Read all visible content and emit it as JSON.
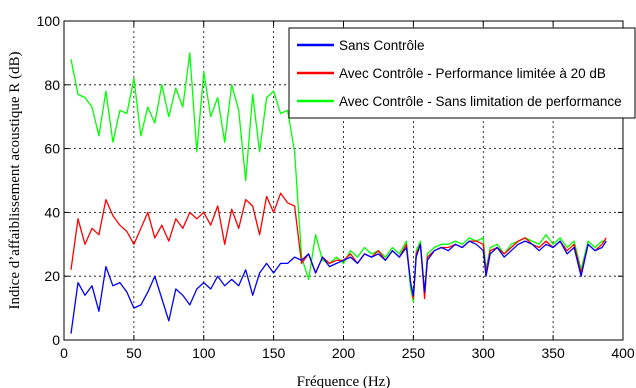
{
  "chart_data": {
    "type": "line",
    "title": "",
    "xlabel": "Fréquence (Hz)",
    "ylabel": "Indice d’affaiblissement acoustique R (dB)",
    "xlim": [
      0,
      400
    ],
    "ylim": [
      0,
      100
    ],
    "xticks": [
      0,
      50,
      100,
      150,
      200,
      250,
      300,
      350,
      400
    ],
    "yticks": [
      0,
      20,
      40,
      60,
      80,
      100
    ],
    "grid": true,
    "legend_position": "top-right",
    "series": [
      {
        "name": "Sans Contrôle",
        "color": "#0000ff",
        "x": [
          5,
          10,
          15,
          20,
          25,
          30,
          35,
          40,
          45,
          50,
          55,
          60,
          65,
          70,
          75,
          80,
          85,
          90,
          95,
          100,
          105,
          110,
          115,
          120,
          125,
          130,
          135,
          140,
          145,
          150,
          155,
          160,
          165,
          170,
          175,
          180,
          185,
          190,
          195,
          200,
          205,
          210,
          215,
          220,
          225,
          230,
          235,
          240,
          245,
          248,
          250,
          252,
          255,
          258,
          260,
          265,
          270,
          275,
          280,
          285,
          290,
          295,
          300,
          302,
          305,
          310,
          315,
          320,
          325,
          330,
          335,
          340,
          345,
          350,
          355,
          360,
          365,
          370,
          375,
          380,
          385,
          388
        ],
        "y": [
          2,
          18,
          14,
          17,
          9,
          23,
          17,
          18,
          15,
          10,
          11,
          15,
          20,
          13,
          6,
          16,
          14,
          11,
          16,
          18,
          16,
          20,
          17,
          19,
          17,
          22,
          14,
          21,
          24,
          21,
          24,
          24,
          26,
          25,
          27,
          21,
          26,
          23,
          24,
          25,
          26,
          24,
          27,
          26,
          27,
          25,
          28,
          26,
          29,
          18,
          14,
          26,
          30,
          15,
          25,
          28,
          29,
          28,
          30,
          29,
          31,
          30,
          28,
          20,
          27,
          29,
          26,
          28,
          30,
          31,
          30,
          28,
          30,
          29,
          31,
          27,
          29,
          20,
          30,
          28,
          29,
          31
        ]
      },
      {
        "name": "Avec Contrôle - Performance limitée à 20 dB",
        "color": "#ff0000",
        "x": [
          5,
          10,
          15,
          20,
          25,
          30,
          35,
          40,
          45,
          50,
          55,
          60,
          65,
          70,
          75,
          80,
          85,
          90,
          95,
          100,
          105,
          110,
          115,
          120,
          125,
          130,
          135,
          140,
          145,
          150,
          155,
          160,
          165,
          170,
          175,
          180,
          185,
          190,
          195,
          200,
          205,
          210,
          215,
          220,
          225,
          230,
          235,
          240,
          245,
          248,
          250,
          252,
          255,
          258,
          260,
          265,
          270,
          275,
          280,
          285,
          290,
          295,
          300,
          302,
          305,
          310,
          315,
          320,
          325,
          330,
          335,
          340,
          345,
          350,
          355,
          360,
          365,
          370,
          375,
          380,
          385,
          388
        ],
        "y": [
          22,
          38,
          30,
          35,
          33,
          44,
          39,
          36,
          34,
          30,
          35,
          40,
          32,
          36,
          31,
          38,
          35,
          40,
          38,
          40,
          36,
          42,
          30,
          41,
          35,
          44,
          42,
          33,
          45,
          40,
          46,
          43,
          42,
          24,
          27,
          21,
          26,
          24,
          25,
          25,
          27,
          24,
          27,
          26,
          28,
          25,
          28,
          26,
          30,
          18,
          13,
          27,
          30,
          13,
          26,
          28,
          29,
          29,
          30,
          29,
          31,
          31,
          30,
          21,
          28,
          29,
          27,
          29,
          31,
          32,
          30,
          29,
          31,
          29,
          31,
          28,
          30,
          21,
          30,
          28,
          30,
          32
        ]
      },
      {
        "name": "Avec Contrôle - Sans limitation de performance",
        "color": "#00ff00",
        "x": [
          5,
          10,
          15,
          20,
          25,
          30,
          35,
          40,
          45,
          50,
          55,
          60,
          65,
          70,
          75,
          80,
          85,
          90,
          95,
          100,
          105,
          110,
          115,
          120,
          125,
          130,
          135,
          140,
          145,
          150,
          155,
          160,
          165,
          170,
          175,
          180,
          185,
          190,
          195,
          200,
          205,
          210,
          215,
          220,
          225,
          230,
          235,
          240,
          245,
          248,
          250,
          252,
          255,
          258,
          260,
          265,
          270,
          275,
          280,
          285,
          290,
          295,
          300,
          302,
          305,
          310,
          315,
          320,
          325,
          330,
          335,
          340,
          345,
          350,
          355,
          360,
          365,
          370,
          375,
          380,
          385,
          388
        ],
        "y": [
          88,
          77,
          76,
          73,
          64,
          78,
          62,
          72,
          71,
          82,
          64,
          73,
          68,
          80,
          70,
          79,
          73,
          90,
          59,
          84,
          70,
          76,
          62,
          80,
          72,
          50,
          77,
          59,
          76,
          78,
          71,
          72,
          59,
          26,
          19,
          33,
          25,
          24,
          26,
          24,
          28,
          26,
          29,
          27,
          28,
          26,
          29,
          27,
          31,
          16,
          12,
          28,
          31,
          14,
          27,
          29,
          30,
          30,
          31,
          30,
          32,
          31,
          32,
          22,
          29,
          30,
          27,
          30,
          31,
          32,
          31,
          30,
          33,
          30,
          32,
          29,
          31,
          22,
          31,
          29,
          31,
          31
        ]
      }
    ]
  }
}
